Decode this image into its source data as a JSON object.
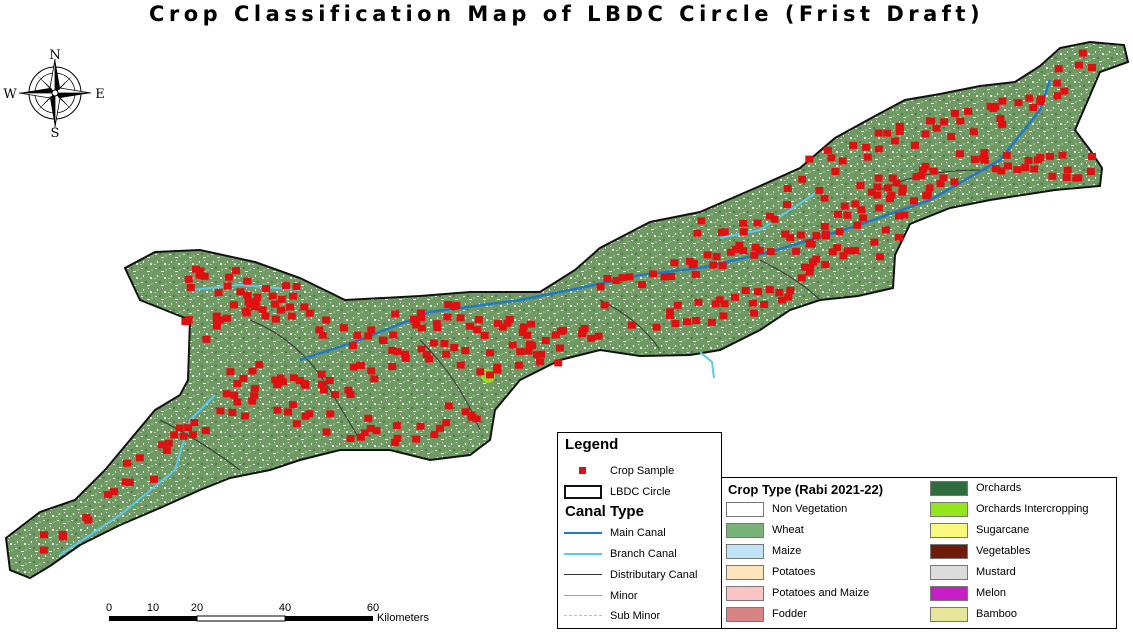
{
  "title": "Crop Classification Map of LBDC Circle (Frist Draft)",
  "compass": {
    "n": "N",
    "s": "S",
    "e": "E",
    "w": "W"
  },
  "legend": {
    "title": "Legend",
    "crop_sample": "Crop Sample",
    "lbdc_circle": "LBDC Circle",
    "canal_type_title": "Canal Type",
    "canals": [
      {
        "label": "Main Canal",
        "color": "#1f78c8"
      },
      {
        "label": "Branch Canal",
        "color": "#5bc8ee"
      },
      {
        "label": "Distributary Canal",
        "color": "#333333"
      },
      {
        "label": "Minor",
        "color": "#c8909a"
      },
      {
        "label": "Sub Minor",
        "color": "#c8b8b8"
      }
    ]
  },
  "crop_legend": {
    "title": "Crop Type (Rabi 2021-22)",
    "col1": [
      {
        "label": "Non Vegetation",
        "color": "#ffffff"
      },
      {
        "label": "Wheat",
        "color": "#78b478"
      },
      {
        "label": "Maize",
        "color": "#bfe4f8"
      },
      {
        "label": "Potatoes",
        "color": "#fde4bc"
      },
      {
        "label": "Potatoes and Maize",
        "color": "#fcc4c4"
      },
      {
        "label": "Fodder",
        "color": "#d88484"
      }
    ],
    "col2": [
      {
        "label": "Orchards",
        "color": "#2e6e3e"
      },
      {
        "label": "Orchards Intercropping",
        "color": "#96e61e"
      },
      {
        "label": "Sugarcane",
        "color": "#f8f87c"
      },
      {
        "label": "Vegetables",
        "color": "#6e1c0c"
      },
      {
        "label": "Mustard",
        "color": "#dcdcdc"
      },
      {
        "label": "Melon",
        "color": "#c81ec8"
      },
      {
        "label": "Bamboo",
        "color": "#e6e69a"
      }
    ]
  },
  "scalebar": {
    "ticks": [
      "0",
      "10",
      "20",
      "40",
      "60"
    ],
    "unit": "Kilometers"
  },
  "colors": {
    "sample": "#e01010",
    "landcover": "#6f9a64",
    "boundary": "#111111"
  }
}
